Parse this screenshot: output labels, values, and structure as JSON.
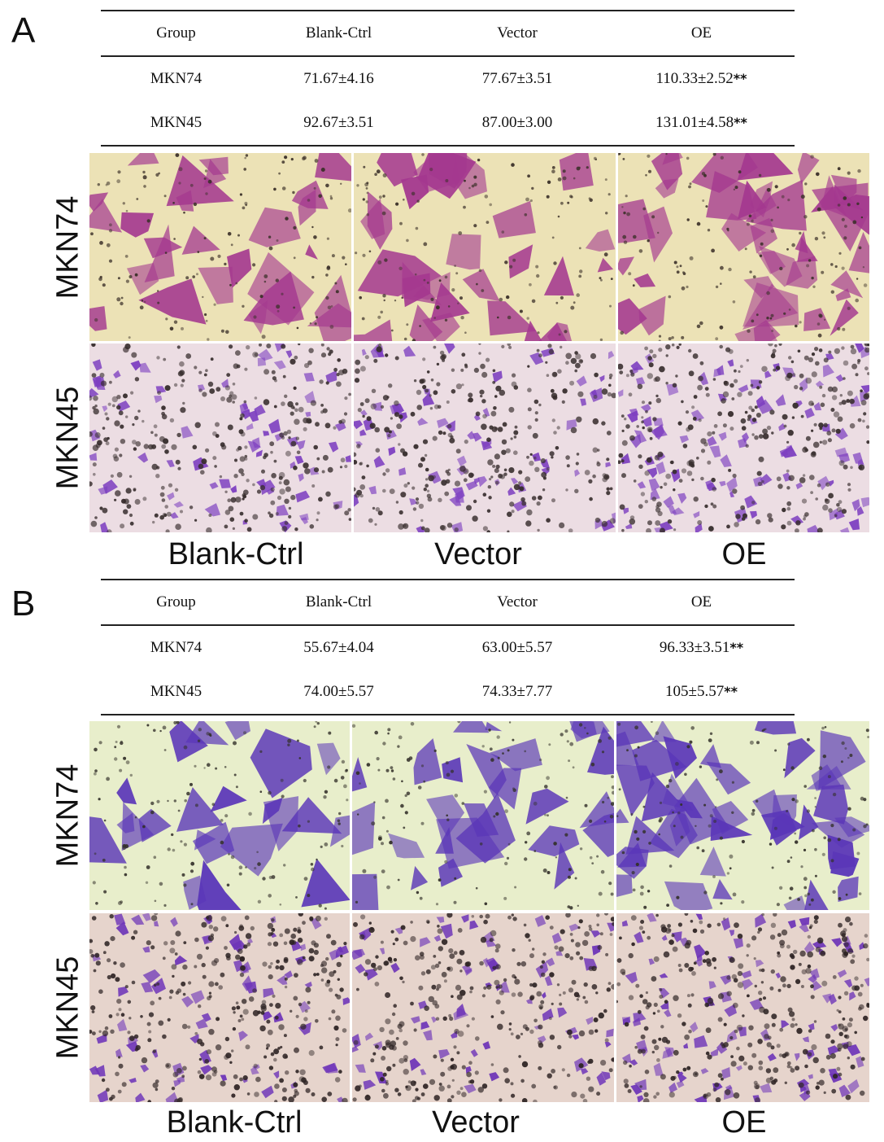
{
  "panels": [
    {
      "letter": "A",
      "table": {
        "headers": [
          "Group",
          "Blank-Ctrl",
          "Vector",
          "OE"
        ],
        "rows": [
          {
            "group": "MKN74",
            "blank": "71.67±4.16",
            "vector": "77.67±3.51",
            "oe": "110.33±2.52",
            "sig": "**"
          },
          {
            "group": "MKN45",
            "blank": "92.67±3.51",
            "vector": "87.00±3.00",
            "oe": "131.01±4.58",
            "sig": "**"
          }
        ]
      },
      "row_labels": [
        "MKN74",
        "MKN45"
      ],
      "col_labels": [
        "Blank-Ctrl",
        "Vector",
        "OE"
      ],
      "image_colors": {
        "MKN74": {
          "background": "#ece2b6",
          "cells": "#a4388f",
          "pores": "#3a2f28"
        },
        "MKN45": {
          "background": "#ecdde3",
          "cells": "#7d3fc0",
          "pores": "#352b2b"
        }
      }
    },
    {
      "letter": "B",
      "table": {
        "headers": [
          "Group",
          "Blank-Ctrl",
          "Vector",
          "OE"
        ],
        "rows": [
          {
            "group": "MKN74",
            "blank": "55.67±4.04",
            "vector": "63.00±5.57",
            "oe": "96.33±3.51",
            "sig": "**"
          },
          {
            "group": "MKN45",
            "blank": "74.00±5.57",
            "vector": "74.33±7.77",
            "oe": "105±5.57",
            "sig": "**"
          }
        ]
      },
      "row_labels": [
        "MKN74",
        "MKN45"
      ],
      "col_labels": [
        "Blank-Ctrl",
        "Vector",
        "OE"
      ],
      "image_colors": {
        "MKN74": {
          "background": "#e8eecb",
          "cells": "#5a36b8",
          "pores": "#33302a"
        },
        "MKN45": {
          "background": "#e6d4cc",
          "cells": "#6e35b8",
          "pores": "#2e2424"
        }
      }
    }
  ]
}
